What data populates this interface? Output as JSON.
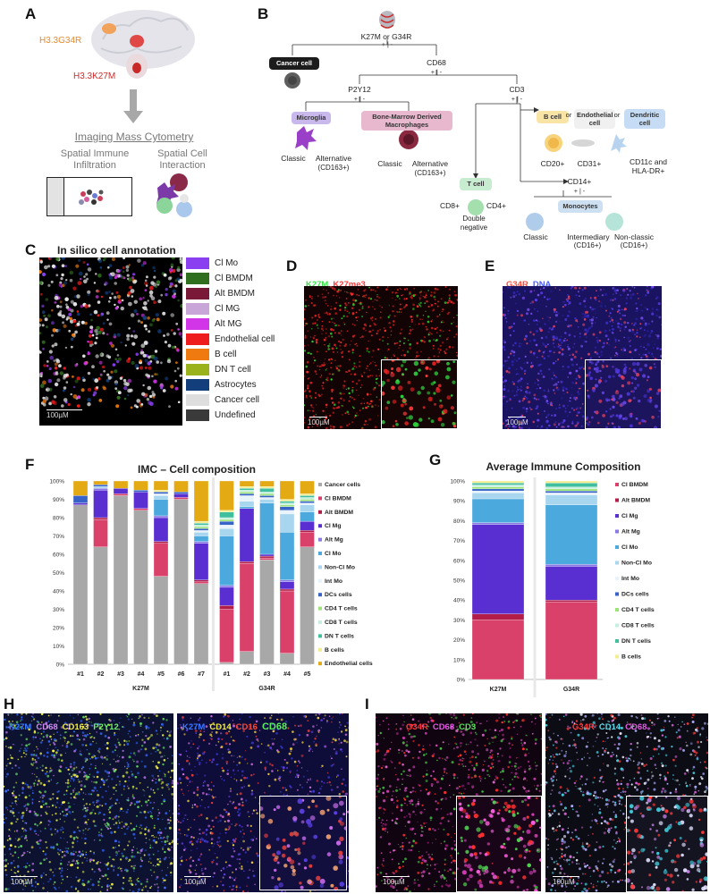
{
  "panels": {
    "A": {
      "label": "A",
      "mutations": [
        "H3.3G34R",
        "H3.3K27M"
      ],
      "title": "Imaging Mass Cytometry",
      "subtitles": [
        "Spatial Immune Infiltration",
        "Spatial Cell Interaction"
      ]
    },
    "B": {
      "label": "B",
      "root": "K27M or G34R",
      "plus_minus": "+ | -",
      "cancer": "Cancer cell",
      "cd68": "CD68",
      "p2y12": "P2Y12",
      "cd3": "CD3",
      "microglia": "Microglia",
      "bmdm": "Bone-Marrow Derived Macrophages",
      "classic": "Classic",
      "alternative": "Alternative",
      "cd163": "(CD163+)",
      "bcell": "B cell",
      "or": "or",
      "endothelial": "Endothelial cell",
      "dendritic": "Dendritic cell",
      "cd20": "CD20+",
      "cd31": "CD31+",
      "cd11c": "CD11c and HLA-DR+",
      "tcell": "T cell",
      "cd8": "CD8+",
      "cd4": "CD4+",
      "double_neg": "Double negative",
      "cd14": "CD14+",
      "monocytes": "Monocytes",
      "intermediary": "Intermediary",
      "nonclassic": "Non-classic",
      "cd16": "(CD16+)"
    },
    "C": {
      "label": "C",
      "title": "In silico cell annotation",
      "scale": "100µM",
      "legend": [
        {
          "name": "Cl Mo",
          "color": "#8a3ff0"
        },
        {
          "name": "Cl BMDM",
          "color": "#2e6e1e"
        },
        {
          "name": "Alt BMDM",
          "color": "#7a1838"
        },
        {
          "name": "Cl MG",
          "color": "#c8a6d8"
        },
        {
          "name": "Alt MG",
          "color": "#d235e8"
        },
        {
          "name": "Endothelial cell",
          "color": "#ee1c1c"
        },
        {
          "name": "B cell",
          "color": "#ee7a10"
        },
        {
          "name": "DN T cell",
          "color": "#9ab21c"
        },
        {
          "name": "Astrocytes",
          "color": "#123e7c"
        },
        {
          "name": "Cancer cell",
          "color": "#dedede"
        },
        {
          "name": "Undefined",
          "color": "#3a3a3a"
        }
      ]
    },
    "D": {
      "label": "D",
      "ch1": "K27M",
      "ch2": "K27me3",
      "scale": "100µM"
    },
    "E": {
      "label": "E",
      "ch1": "G34R",
      "ch2": "DNA",
      "scale": "100µM"
    },
    "F": {
      "label": "F"
    },
    "G": {
      "label": "G"
    },
    "H": {
      "label": "H",
      "left": [
        "K27M",
        "CD68",
        "CD163",
        "P2Y12"
      ],
      "right": [
        "K27M",
        "CD14",
        "CD16",
        "CD68"
      ],
      "scale": "100µM"
    },
    "I": {
      "label": "I",
      "left": [
        "G34R",
        "CD68",
        "CD3"
      ],
      "right": [
        "G34R",
        "CD14",
        "CD68"
      ],
      "scale": "100µM"
    }
  },
  "chart_data": [
    {
      "type": "bar",
      "stacked": true,
      "title": "IMC – Cell composition",
      "categories": [
        "#1",
        "#2",
        "#3",
        "#4",
        "#5",
        "#6",
        "#7",
        "#1",
        "#2",
        "#3",
        "#4",
        "#5"
      ],
      "groups": [
        {
          "name": "K27M",
          "indices": [
            0,
            6
          ]
        },
        {
          "name": "G34R",
          "indices": [
            7,
            11
          ]
        }
      ],
      "yticks": [
        "0%",
        "10%",
        "20%",
        "30%",
        "40%",
        "50%",
        "60%",
        "70%",
        "80%",
        "90%",
        "100%"
      ],
      "ylim": [
        0,
        100
      ],
      "series": [
        {
          "name": "Cancer cells",
          "color": "#a8a8a8",
          "values": [
            87,
            64,
            92,
            84,
            48,
            90,
            44,
            1,
            7,
            57,
            6,
            64
          ]
        },
        {
          "name": "Cl BMDM",
          "color": "#d9416a",
          "values": [
            0,
            15,
            1,
            1,
            18,
            1,
            1,
            29,
            48,
            1,
            34,
            8
          ]
        },
        {
          "name": "Alt BMDM",
          "color": "#b31e49",
          "values": [
            0,
            1,
            0,
            0,
            1,
            0,
            1,
            2,
            1,
            1,
            1,
            1
          ]
        },
        {
          "name": "Cl Mg",
          "color": "#5a2fd2",
          "values": [
            1,
            15,
            3,
            9,
            13,
            2,
            20,
            10,
            29,
            1,
            4,
            5
          ]
        },
        {
          "name": "Alt Mg",
          "color": "#8a78e6",
          "values": [
            0,
            1,
            0,
            0,
            1,
            0,
            1,
            1,
            0,
            0,
            1,
            0
          ]
        },
        {
          "name": "Cl Mo",
          "color": "#4ba9de",
          "values": [
            0,
            0,
            0,
            0,
            9,
            0,
            3,
            27,
            1,
            28,
            26,
            5
          ]
        },
        {
          "name": "Non-Cl Mo",
          "color": "#a8d6ef",
          "values": [
            0,
            1,
            0,
            0,
            2,
            0,
            2,
            4,
            3,
            2,
            10,
            4
          ]
        },
        {
          "name": "Int Mo",
          "color": "#e8f3fb",
          "values": [
            0,
            0,
            0,
            0,
            1,
            0,
            1,
            2,
            3,
            1,
            2,
            1
          ]
        },
        {
          "name": "DCs cells",
          "color": "#3763c8",
          "values": [
            4,
            1,
            0,
            1,
            1,
            1,
            1,
            2,
            1,
            1,
            2,
            1
          ]
        },
        {
          "name": "CD4 T cells",
          "color": "#9ce37a",
          "values": [
            0,
            0,
            0,
            0,
            0,
            0,
            1,
            1,
            1,
            1,
            1,
            1
          ]
        },
        {
          "name": "CD8 T cells",
          "color": "#c5f0e0",
          "values": [
            0,
            0,
            0,
            0,
            0,
            0,
            1,
            1,
            1,
            1,
            1,
            1
          ]
        },
        {
          "name": "DN T cells",
          "color": "#3fbf9e",
          "values": [
            0,
            0,
            0,
            0,
            0,
            0,
            1,
            3,
            1,
            2,
            1,
            1
          ]
        },
        {
          "name": "B cells",
          "color": "#f4ed90",
          "values": [
            0,
            0,
            0,
            0,
            1,
            0,
            1,
            1,
            1,
            1,
            1,
            1
          ]
        },
        {
          "name": "Endothelial cells",
          "color": "#e4aa14",
          "values": [
            8,
            2,
            4,
            5,
            5,
            6,
            22,
            16,
            3,
            3,
            10,
            7
          ]
        }
      ]
    },
    {
      "type": "bar",
      "stacked": true,
      "title": "Average Immune Composition",
      "categories": [
        "K27M",
        "G34R"
      ],
      "yticks": [
        "0%",
        "10%",
        "20%",
        "30%",
        "40%",
        "50%",
        "60%",
        "70%",
        "80%",
        "90%",
        "100%"
      ],
      "ylim": [
        0,
        100
      ],
      "series": [
        {
          "name": "Cl BMDM",
          "color": "#d9416a",
          "values": [
            30,
            39
          ]
        },
        {
          "name": "Alt BMDM",
          "color": "#b31e49",
          "values": [
            3,
            1
          ]
        },
        {
          "name": "Cl Mg",
          "color": "#5a2fd2",
          "values": [
            45,
            17
          ]
        },
        {
          "name": "Alt Mg",
          "color": "#8a78e6",
          "values": [
            1,
            1
          ]
        },
        {
          "name": "Cl Mo",
          "color": "#4ba9de",
          "values": [
            12,
            30
          ]
        },
        {
          "name": "Non-Cl Mo",
          "color": "#a8d6ef",
          "values": [
            3,
            5
          ]
        },
        {
          "name": "Int Mo",
          "color": "#e8f3fb",
          "values": [
            1,
            1
          ]
        },
        {
          "name": "DCs cells",
          "color": "#3763c8",
          "values": [
            1,
            1
          ]
        },
        {
          "name": "CD4 T cells",
          "color": "#9ce37a",
          "values": [
            1,
            1
          ]
        },
        {
          "name": "CD8 T cells",
          "color": "#c5f0e0",
          "values": [
            1,
            1
          ]
        },
        {
          "name": "DN T cells",
          "color": "#3fbf9e",
          "values": [
            1,
            2
          ]
        },
        {
          "name": "B cells",
          "color": "#f4ed90",
          "values": [
            1,
            1
          ]
        }
      ]
    }
  ]
}
